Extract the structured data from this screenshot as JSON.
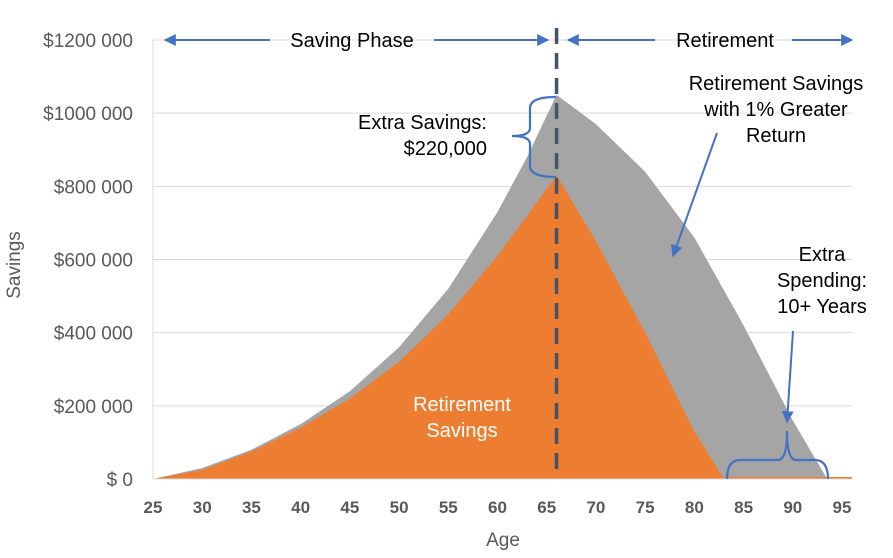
{
  "chart_data": {
    "type": "area",
    "xlabel": "Age",
    "ylabel": "Savings",
    "xlim": [
      25,
      95
    ],
    "ylim": [
      0,
      1200000
    ],
    "x_ticks": [
      "25",
      "30",
      "35",
      "40",
      "45",
      "50",
      "55",
      "60",
      "65",
      "70",
      "75",
      "80",
      "85",
      "90",
      "95"
    ],
    "y_ticks": [
      {
        "value": 0,
        "label": "$ 0"
      },
      {
        "value": 200000,
        "label": "$200 000"
      },
      {
        "value": 400000,
        "label": "$400 000"
      },
      {
        "value": 600000,
        "label": "$600 000"
      },
      {
        "value": 800000,
        "label": "$800 000"
      },
      {
        "value": 1000000,
        "label": "$1000 000"
      },
      {
        "value": 1200000,
        "label": "$1200 000"
      }
    ],
    "grid": "horizontal",
    "retirement_age": 66,
    "series": [
      {
        "color": "#a5a5a5",
        "x": [
          25,
          30,
          35,
          40,
          45,
          50,
          55,
          60,
          63,
          66,
          70,
          75,
          80,
          85,
          90,
          93.5
        ],
        "y": [
          0,
          30000,
          80000,
          150000,
          240000,
          360000,
          520000,
          730000,
          880000,
          1050000,
          970000,
          840000,
          660000,
          420000,
          160000,
          0
        ]
      },
      {
        "color": "#ed7d31",
        "x": [
          25,
          30,
          35,
          40,
          45,
          50,
          55,
          60,
          63,
          66,
          70,
          75,
          80,
          83
        ],
        "y": [
          0,
          25000,
          75000,
          140000,
          220000,
          320000,
          450000,
          610000,
          720000,
          830000,
          650000,
          400000,
          130000,
          0
        ]
      }
    ],
    "annotations": {
      "saving_phase": "Saving Phase",
      "retirement": "Retirement",
      "extra_savings_line1": "Extra Savings:",
      "extra_savings_line2": "$220,000",
      "greater_return_line1": "Retirement Savings",
      "greater_return_line2": "with 1% Greater",
      "greater_return_line3": "Return",
      "extra_spending_line1": "Extra",
      "extra_spending_line2": "Spending:",
      "extra_spending_line3": "10+ Years",
      "retirement_savings_line1": "Retirement",
      "retirement_savings_line2": "Savings"
    },
    "colors": {
      "annotation_blue": "#4472c4",
      "dashed_line": "#44546a",
      "axis_text": "#595959",
      "grid": "#d9d9d9"
    }
  }
}
